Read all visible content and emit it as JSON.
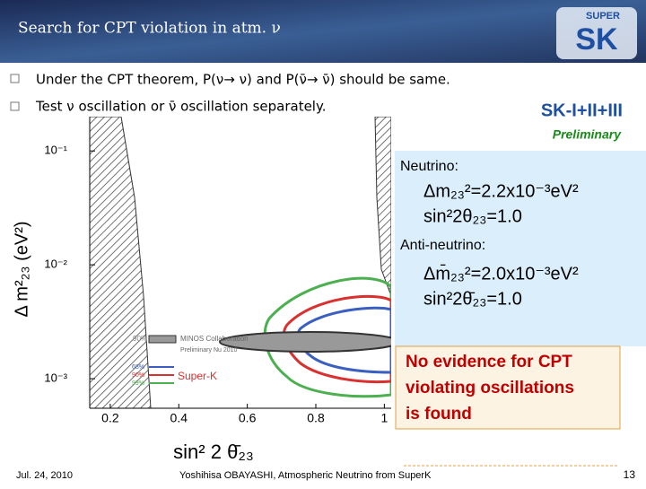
{
  "header": {
    "title": "Search for CPT violation in atm. ν",
    "logo_top": "SUPER",
    "logo_main": "SK"
  },
  "bullets": [
    "Under the CPT theorem, P(ν→ ν) and P(ν̄→ ν̄) should be same.",
    "Test ν oscillation or ν̄ oscillation separately."
  ],
  "plot": {
    "x_label": "sin² 2 θ̄₂₃",
    "y_label": "Δ m²₂₃ (eV²)",
    "xlim": [
      0.14,
      1.02
    ],
    "ylim": [
      0.00055,
      0.2
    ],
    "ylog": true,
    "xticks": [
      0.2,
      0.4,
      0.6,
      0.8,
      1
    ],
    "yticks": [
      {
        "value": 0.1,
        "label": "10⁻¹"
      },
      {
        "value": 0.01,
        "label": "10⁻²"
      },
      {
        "value": 0.001,
        "label": "10⁻³"
      }
    ],
    "legend": {
      "minos_level": "90%",
      "minos_name": "MINOS Collaboration",
      "minos_note": "Preliminary Nu 2010",
      "sk_levels": [
        {
          "label": "68%",
          "color": "#3b5fc0"
        },
        {
          "label": "90%",
          "color": "#d93030"
        },
        {
          "label": "99%",
          "color": "#4caf50"
        }
      ],
      "sk_name": "Super-K"
    }
  },
  "results": {
    "experiment": "SK-I+II+III",
    "status": "Preliminary",
    "neutrino": {
      "heading": "Neutrino:",
      "dm2": "Δm₂₃²=2.2x10⁻³eV²",
      "sin2": "sin²2θ₂₃=1.0"
    },
    "antineutrino": {
      "heading": "Anti-neutrino:",
      "dm2": "Δm̄₂₃²=2.0x10⁻³eV²",
      "sin2": "sin²2θ̄₂₃=1.0"
    },
    "conclusion": [
      "No evidence for CPT",
      "violating oscillations",
      "is found"
    ]
  },
  "footer": {
    "date": "Jul. 24, 2010",
    "author": "Yoshihisa OBAYASHI, Atmospheric Neutrino from SuperK",
    "page": "13"
  }
}
